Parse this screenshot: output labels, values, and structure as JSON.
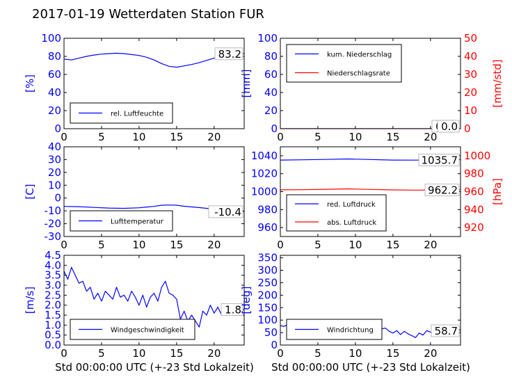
{
  "figure": {
    "title": "2017-01-19 Wetterdaten Station FUR\u0007",
    "xlabel": "Std 00:00:00 UTC (+-23 Std Lokalzeit)"
  },
  "colors": {
    "primary": "#0000ff",
    "secondary": "#ff0000",
    "black": "#000000"
  },
  "chart_data": [
    {
      "id": "humidity",
      "type": "line",
      "ylabel": "[%]",
      "ylabel_color": "#0000ff",
      "xlim": [
        0,
        24
      ],
      "xticks": [
        0,
        5,
        10,
        15,
        20
      ],
      "ylim": [
        0,
        100
      ],
      "yticks": [
        0,
        20,
        40,
        60,
        80,
        100
      ],
      "legend": "bottom-left",
      "annotation": "83.2",
      "series": [
        {
          "name": "rel. Luftfeuchte",
          "color": "#0000ff",
          "axis": "left",
          "x": [
            0,
            1,
            2,
            3,
            4,
            5,
            6,
            7,
            8,
            9,
            10,
            11,
            12,
            13,
            14,
            15,
            16,
            17,
            18,
            19,
            20,
            21,
            22,
            23,
            24
          ],
          "y": [
            77,
            76,
            78,
            80,
            81.5,
            82.5,
            83,
            83.5,
            83,
            82,
            81,
            79,
            76,
            72,
            69,
            68,
            69.5,
            71,
            73,
            75.5,
            78,
            80,
            82,
            83,
            83.2
          ]
        }
      ]
    },
    {
      "id": "precip",
      "type": "line",
      "ylabel": "[mm]",
      "ylabel_color": "#0000ff",
      "ylabel_right": "[mm/std]",
      "ylabel_right_color": "#ff0000",
      "xlim": [
        0,
        24
      ],
      "xticks": [
        0,
        5,
        10,
        15,
        20
      ],
      "ylim": [
        0,
        100
      ],
      "yticks": [
        0,
        20,
        40,
        60,
        80,
        100
      ],
      "ylim_right": [
        0,
        50
      ],
      "yticks_right": [
        0,
        10,
        20,
        30,
        40,
        50
      ],
      "legend": "top-left",
      "annotations": [
        "0.0",
        "0.0"
      ],
      "series": [
        {
          "name": "kum. Niederschlag",
          "color": "#0000ff",
          "axis": "left",
          "x": [
            0,
            24
          ],
          "y": [
            0,
            0
          ]
        },
        {
          "name": "Niederschlagsrate",
          "color": "#ff0000",
          "axis": "right",
          "x": [
            0,
            24
          ],
          "y": [
            0,
            0
          ]
        }
      ]
    },
    {
      "id": "temperature",
      "type": "line",
      "ylabel": "[C]",
      "ylabel_color": "#0000ff",
      "xlim": [
        0,
        24
      ],
      "xticks": [
        0,
        5,
        10,
        15,
        20
      ],
      "ylim": [
        -30,
        40
      ],
      "yticks": [
        -30,
        -20,
        -10,
        0,
        10,
        20,
        30,
        40
      ],
      "legend": "bottom-left",
      "annotation": "-10.4",
      "series": [
        {
          "name": "Lufttemperatur",
          "color": "#0000ff",
          "axis": "left",
          "x": [
            0,
            2,
            4,
            6,
            8,
            10,
            11,
            12,
            13,
            14,
            15,
            16,
            18,
            20,
            22,
            24
          ],
          "y": [
            -6.5,
            -6.7,
            -7.3,
            -7.8,
            -8.0,
            -7.6,
            -7.0,
            -6.5,
            -5.6,
            -5.4,
            -5.6,
            -6.4,
            -7.4,
            -8.6,
            -9.6,
            -10.4
          ]
        }
      ]
    },
    {
      "id": "pressure",
      "type": "line",
      "ylabel_right": "[hPa]",
      "ylabel_right_color": "#ff0000",
      "xlim": [
        0,
        24
      ],
      "xticks": [
        0,
        5,
        10,
        15,
        20
      ],
      "ylim": [
        950,
        1050
      ],
      "yticks": [
        960,
        980,
        1000,
        1020,
        1040
      ],
      "ylim_right": [
        910,
        1010
      ],
      "yticks_right": [
        920,
        940,
        960,
        980,
        1000
      ],
      "legend": "bottom-left",
      "annotations": [
        "1035.7",
        "962.2"
      ],
      "series": [
        {
          "name": "red. Luftdruck",
          "color": "#0000ff",
          "axis": "left",
          "x": [
            0,
            3,
            6,
            9,
            12,
            15,
            18,
            21,
            24
          ],
          "y": [
            1035.2,
            1035.5,
            1035.9,
            1036.4,
            1035.8,
            1035.2,
            1035.1,
            1035.4,
            1035.7
          ]
        },
        {
          "name": "abs. Luftdruck",
          "color": "#ff0000",
          "axis": "right",
          "x": [
            0,
            3,
            6,
            9,
            12,
            15,
            18,
            21,
            24
          ],
          "y": [
            962.0,
            962.2,
            962.6,
            963.1,
            962.5,
            961.9,
            961.7,
            961.9,
            962.2
          ]
        }
      ]
    },
    {
      "id": "windspeed",
      "type": "line",
      "ylabel": "[m/s]",
      "ylabel_color": "#0000ff",
      "xlim": [
        0,
        24
      ],
      "xticks": [
        0,
        5,
        10,
        15,
        20
      ],
      "ylim": [
        0,
        4.5
      ],
      "yticks": [
        0.0,
        0.5,
        1.0,
        1.5,
        2.0,
        2.5,
        3.0,
        3.5,
        4.0,
        4.5
      ],
      "legend": "bottom-left",
      "annotation": "1.8",
      "series": [
        {
          "name": "Windgeschwindigkeit",
          "color": "#0000ff",
          "axis": "left",
          "x": [
            0,
            0.5,
            1,
            1.5,
            2,
            2.5,
            3,
            3.5,
            4,
            4.5,
            5,
            5.5,
            6,
            6.5,
            7,
            7.5,
            8,
            8.5,
            9,
            9.5,
            10,
            10.5,
            11,
            11.5,
            12,
            12.5,
            13,
            13.5,
            14,
            14.5,
            15,
            15.5,
            16,
            16.5,
            17,
            17.5,
            18,
            18.5,
            19,
            19.5,
            20,
            20.5,
            21,
            21.5,
            22,
            22.5,
            23,
            23.5,
            24
          ],
          "y": [
            3.7,
            3.3,
            3.9,
            3.5,
            3.1,
            3.2,
            2.7,
            2.9,
            2.3,
            2.6,
            2.2,
            2.7,
            2.5,
            2.3,
            2.9,
            2.4,
            2.5,
            2.2,
            2.7,
            2.4,
            2.0,
            2.5,
            1.9,
            2.4,
            2.6,
            2.2,
            2.9,
            3.2,
            2.6,
            2.5,
            2.3,
            1.3,
            1.7,
            1.2,
            1.5,
            1.2,
            0.9,
            1.7,
            1.5,
            2.0,
            1.6,
            1.9,
            1.5,
            1.8,
            1.6,
            1.5,
            1.9,
            1.7,
            1.8
          ]
        }
      ]
    },
    {
      "id": "winddir",
      "type": "line",
      "ylabel": "[deg]",
      "ylabel_color": "#0000ff",
      "xlim": [
        0,
        24
      ],
      "xticks": [
        0,
        5,
        10,
        15,
        20
      ],
      "ylim": [
        0,
        360
      ],
      "yticks": [
        0,
        50,
        100,
        150,
        200,
        250,
        300,
        350
      ],
      "legend": "bottom-left",
      "annotation": "58.7",
      "series": [
        {
          "name": "Windrichtung",
          "color": "#0000ff",
          "axis": "left",
          "x": [
            0,
            0.5,
            1,
            1.5,
            2,
            2.5,
            3,
            3.5,
            4,
            4.5,
            5,
            5.5,
            6,
            6.5,
            7,
            7.5,
            8,
            8.5,
            9,
            9.5,
            10,
            10.5,
            11,
            11.5,
            12,
            12.5,
            13,
            13.5,
            14,
            14.5,
            15,
            15.5,
            16,
            16.5,
            17,
            17.5,
            18,
            18.5,
            19,
            19.5,
            20,
            20.5,
            21,
            21.5,
            22,
            22.5,
            23,
            23.5,
            24
          ],
          "y": [
            78,
            75,
            82,
            70,
            95,
            75,
            85,
            68,
            80,
            72,
            78,
            65,
            82,
            70,
            76,
            68,
            85,
            72,
            100,
            70,
            90,
            75,
            80,
            68,
            78,
            72,
            70,
            65,
            68,
            55,
            48,
            58,
            42,
            55,
            45,
            38,
            30,
            48,
            40,
            58,
            52,
            45,
            55,
            62,
            50,
            65,
            48,
            70,
            58.7
          ]
        }
      ]
    }
  ]
}
